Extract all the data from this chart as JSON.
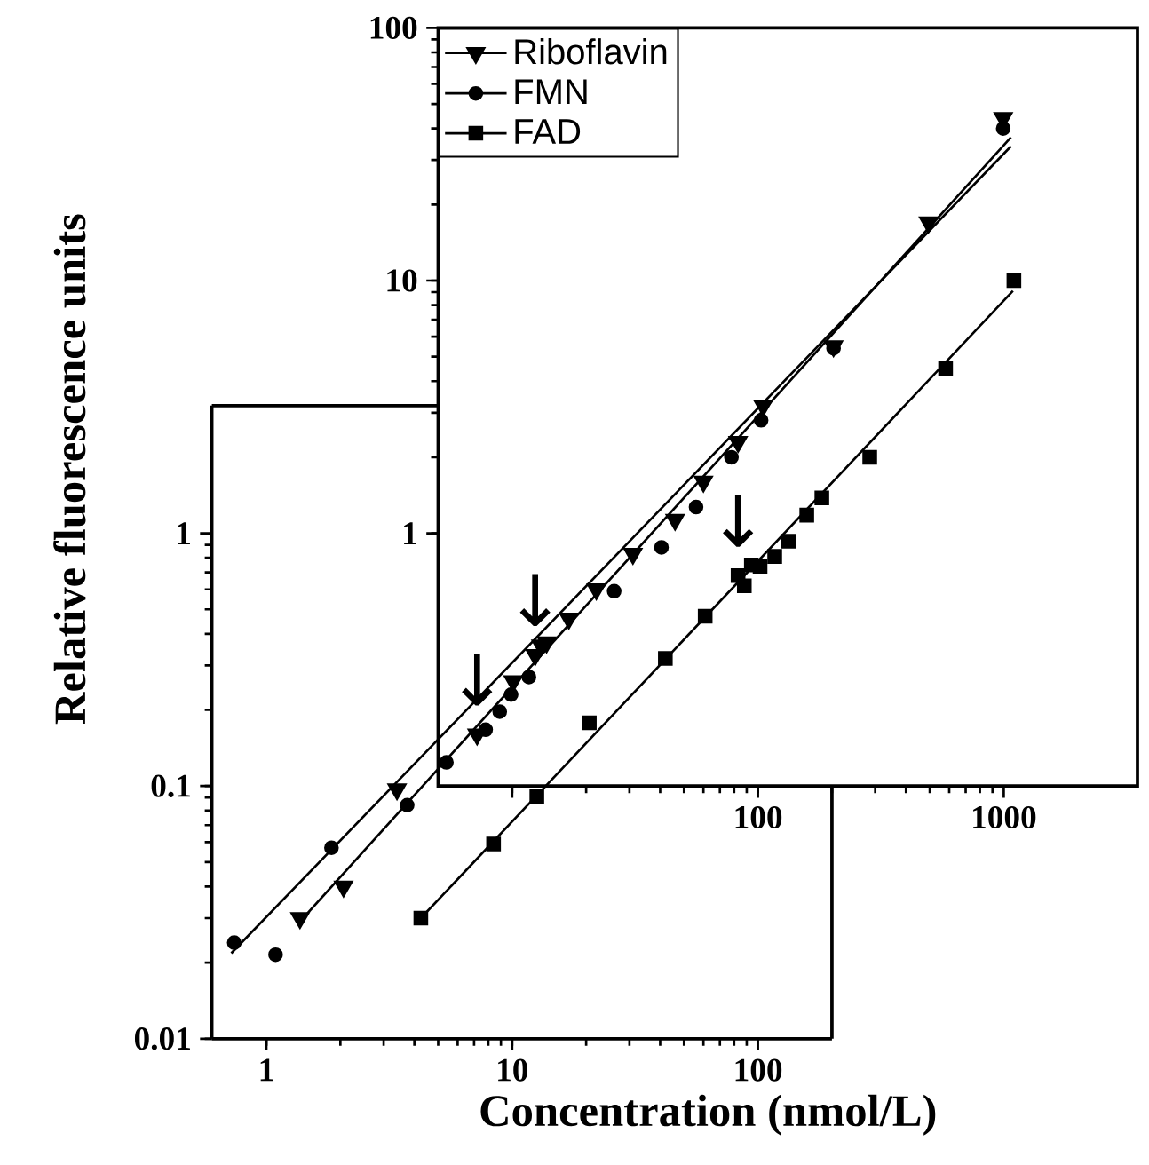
{
  "chart_data": [
    {
      "type": "scatter",
      "xlabel": "Concentration (nmol/L)",
      "ylabel": "Relative fluorescence units",
      "log": "xy",
      "xlim": [
        0.6,
        200
      ],
      "ylim": [
        0.01,
        3.2
      ],
      "xticks": [
        1,
        10,
        100
      ],
      "yticks": [
        0.01,
        0.1,
        1
      ],
      "series": [
        {
          "marker": "triangle",
          "color": "#000000",
          "x": [
            1.37,
            2.06,
            3.4
          ],
          "values": [
            0.03,
            0.04,
            0.097
          ]
        },
        {
          "marker": "circle",
          "color": "#000000",
          "x": [
            0.74,
            1.09,
            1.84,
            3.74
          ],
          "values": [
            0.024,
            0.0215,
            0.057,
            0.084
          ]
        },
        {
          "marker": "square",
          "color": "#000000",
          "x": [
            4.25,
            8.4,
            12.6
          ],
          "values": [
            0.03,
            0.059,
            0.091
          ]
        },
        {
          "type": "line",
          "marker": "none",
          "color": "#000000",
          "x": [
            1.34,
            5
          ],
          "values": [
            0.0284,
            0.117
          ]
        },
        {
          "type": "line",
          "marker": "none",
          "color": "#000000",
          "x": [
            0.72,
            5
          ],
          "values": [
            0.0218,
            0.153
          ]
        },
        {
          "type": "line",
          "marker": "none",
          "color": "#000000",
          "x": [
            4.25,
            13.7
          ],
          "values": [
            0.03,
            0.1
          ]
        }
      ]
    },
    {
      "type": "scatter",
      "log": "xy",
      "xlim": [
        5,
        3500
      ],
      "ylim": [
        0.1,
        100
      ],
      "xticks": [
        {
          "value": 10,
          "label": null
        },
        100,
        1000
      ],
      "yticks": [
        1,
        10,
        100
      ],
      "legend": "top left",
      "annotations": [
        {
          "text": "↓",
          "x": 7.2,
          "y": 0.16
        },
        {
          "text": "↓",
          "x": 12.4,
          "y": 0.33
        },
        {
          "text": "↓",
          "x": 83,
          "y": 0.68
        }
      ],
      "series": [
        {
          "name": "Riboflavin",
          "marker": "triangle",
          "color": "#000000",
          "x": [
            7.2,
            10.1,
            12.4,
            13.1,
            13.8,
            17,
            22,
            31,
            46,
            60,
            83,
            105,
            203,
            494,
            995
          ],
          "values": [
            0.16,
            0.26,
            0.33,
            0.36,
            0.37,
            0.46,
            0.6,
            0.83,
            1.13,
            1.6,
            2.3,
            3.2,
            5.5,
            17,
            44
          ]
        },
        {
          "name": "FMN",
          "marker": "circle",
          "color": "#000000",
          "x": [
            5.4,
            7.8,
            8.9,
            9.9,
            11.7,
            26,
            40.5,
            56,
            78,
            103,
            203,
            995
          ],
          "values": [
            0.124,
            0.167,
            0.197,
            0.23,
            0.27,
            0.59,
            0.88,
            1.27,
            2.0,
            2.8,
            5.4,
            40
          ]
        },
        {
          "name": "FAD",
          "marker": "square",
          "color": "#000000",
          "x": [
            20.6,
            42,
            61,
            83,
            88,
            94,
            102,
            117,
            133,
            158,
            182,
            285,
            580,
            1100
          ],
          "values": [
            0.178,
            0.32,
            0.47,
            0.68,
            0.62,
            0.75,
            0.74,
            0.81,
            0.93,
            1.18,
            1.38,
            2.0,
            4.5,
            10
          ]
        },
        {
          "type": "line",
          "marker": "none",
          "color": "#000000",
          "x": [
            5,
            1070
          ],
          "values": [
            0.117,
            36.9
          ]
        },
        {
          "type": "line",
          "marker": "none",
          "color": "#000000",
          "x": [
            5,
            1070
          ],
          "values": [
            0.153,
            34
          ]
        },
        {
          "type": "line",
          "marker": "none",
          "color": "#000000",
          "x": [
            13.7,
            1090
          ],
          "values": [
            0.1,
            9.1
          ]
        }
      ]
    }
  ]
}
